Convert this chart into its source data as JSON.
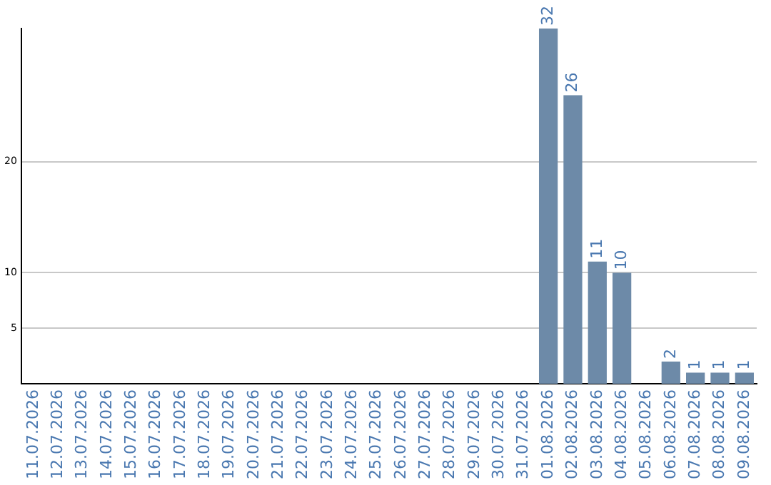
{
  "chart_data": {
    "type": "bar",
    "categories": [
      "11.07.2026",
      "12.07.2026",
      "13.07.2026",
      "14.07.2026",
      "15.07.2026",
      "16.07.2026",
      "17.07.2026",
      "18.07.2026",
      "19.07.2026",
      "20.07.2026",
      "21.07.2026",
      "22.07.2026",
      "23.07.2026",
      "24.07.2026",
      "25.07.2026",
      "26.07.2026",
      "27.07.2026",
      "28.07.2026",
      "29.07.2026",
      "30.07.2026",
      "31.07.2026",
      "01.08.2026",
      "02.08.2026",
      "03.08.2026",
      "04.08.2026",
      "05.08.2026",
      "06.08.2026",
      "07.08.2026",
      "08.08.2026",
      "09.08.2026"
    ],
    "values": [
      0,
      0,
      0,
      0,
      0,
      0,
      0,
      0,
      0,
      0,
      0,
      0,
      0,
      0,
      0,
      0,
      0,
      0,
      0,
      0,
      0,
      32,
      26,
      11,
      10,
      0,
      2,
      1,
      1,
      1
    ],
    "value_labels": [
      null,
      null,
      null,
      null,
      null,
      null,
      null,
      null,
      null,
      null,
      null,
      null,
      null,
      null,
      null,
      null,
      null,
      null,
      null,
      null,
      null,
      "32",
      "26",
      "11",
      "10",
      null,
      "2",
      "1",
      "1",
      "1"
    ],
    "color": "#6d8aa8",
    "ylim": [
      0,
      32
    ],
    "yticks": [
      5,
      10,
      20
    ],
    "grid": "y",
    "legend": false
  }
}
